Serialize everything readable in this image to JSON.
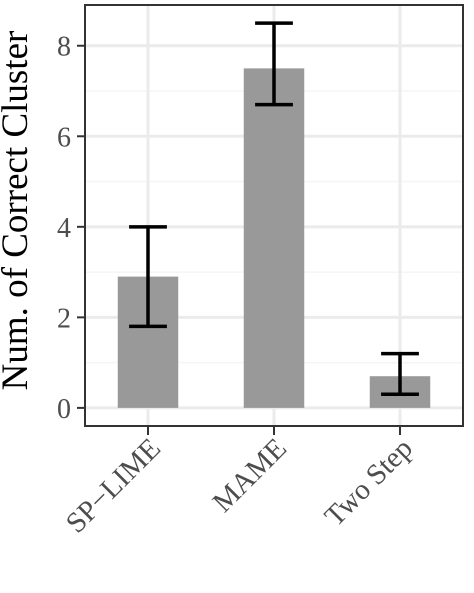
{
  "chart_data": {
    "type": "bar",
    "categories": [
      "SP−LIME",
      "MAME",
      "Two Step"
    ],
    "values": [
      2.9,
      7.5,
      0.7
    ],
    "error_bars": [
      {
        "low": 1.8,
        "high": 4.0
      },
      {
        "low": 6.7,
        "high": 8.5
      },
      {
        "low": 0.3,
        "high": 1.2
      }
    ],
    "ylabel": "Num. of Correct Cluster",
    "xlabel": "",
    "ylim": [
      -0.4,
      8.9
    ],
    "yticks": [
      0,
      2,
      4,
      6,
      8
    ],
    "grid": true,
    "colors": {
      "bar": "#999999",
      "grid_major": "#ebebeb",
      "grid_minor": "#f5f5f5",
      "panel_border": "#333333",
      "error_bar": "#000000",
      "tick_text": "#4d4d4d"
    }
  }
}
